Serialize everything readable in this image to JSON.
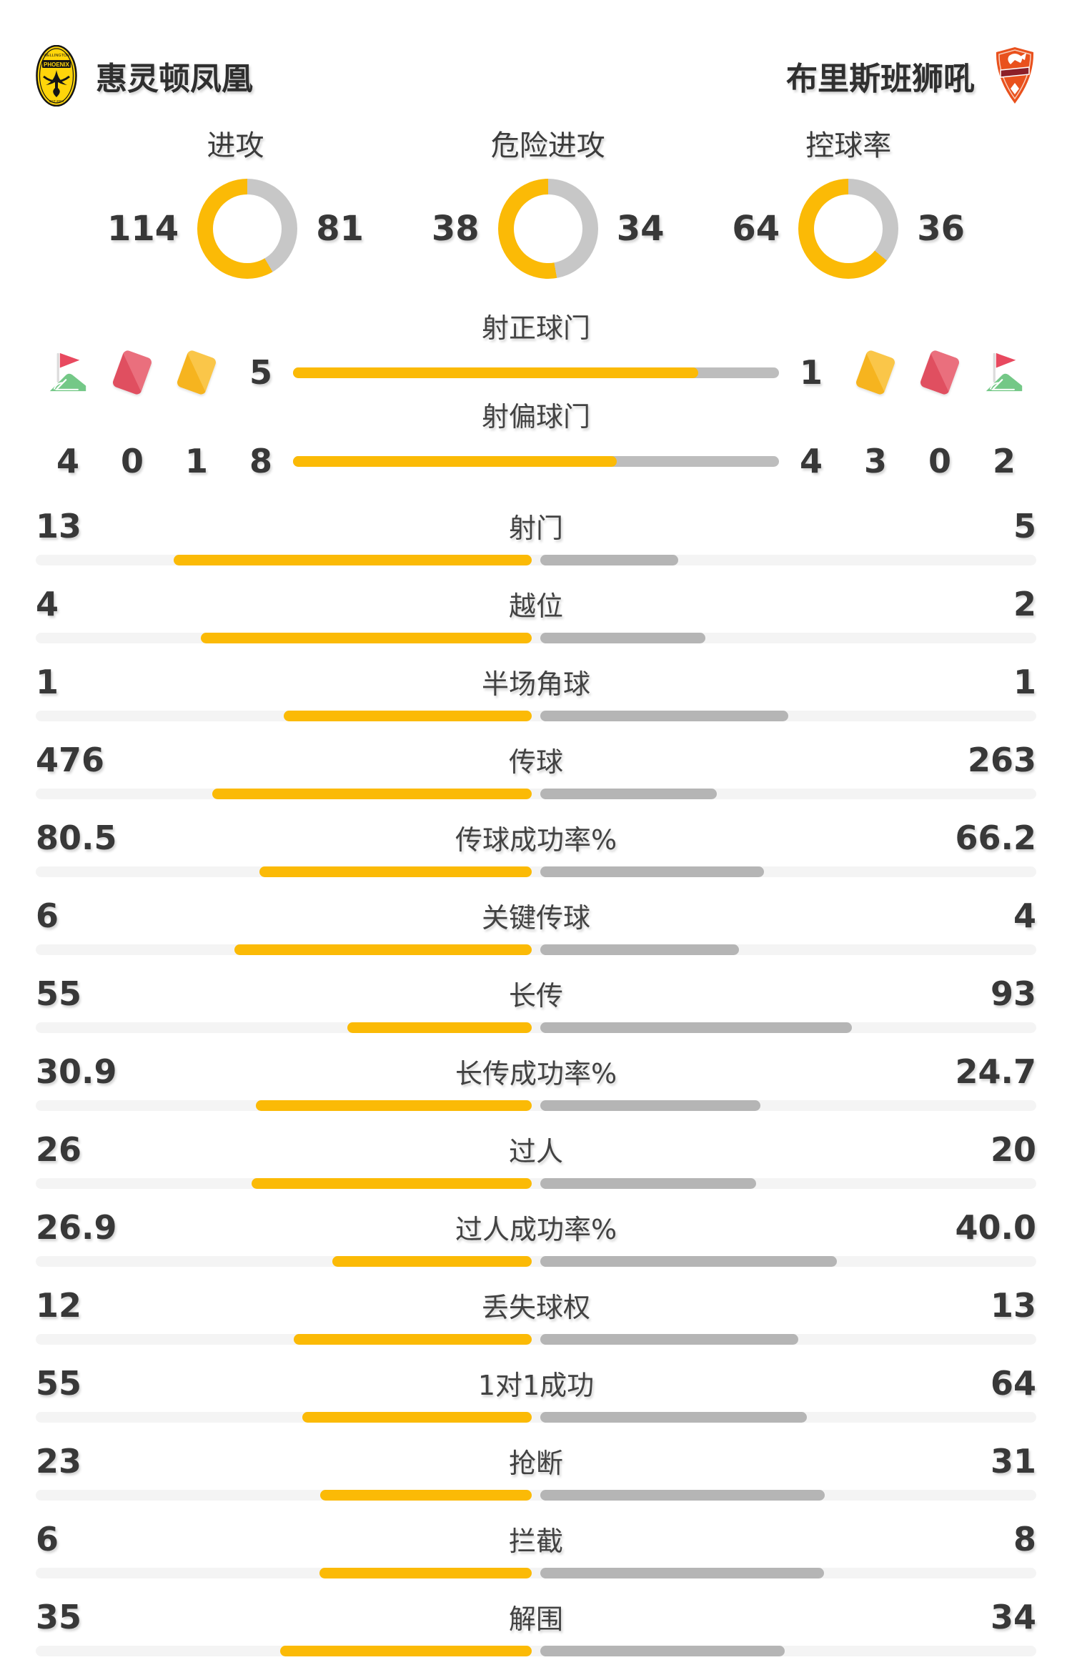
{
  "teams": {
    "home": {
      "name": "惠灵顿凤凰"
    },
    "away": {
      "name": "布里斯班狮吼"
    }
  },
  "circles": [
    {
      "label": "进攻",
      "home": "114",
      "away": "81"
    },
    {
      "label": "危险进攻",
      "home": "38",
      "away": "34"
    },
    {
      "label": "控球率",
      "home": "64",
      "away": "36"
    }
  ],
  "discipline": {
    "home": [
      {
        "type": "corner-flag",
        "count": "4"
      },
      {
        "type": "red-card",
        "count": "0"
      },
      {
        "type": "yellow-card",
        "count": "1"
      }
    ],
    "away": [
      {
        "type": "yellow-card",
        "count": "3"
      },
      {
        "type": "red-card",
        "count": "0"
      },
      {
        "type": "corner-flag",
        "count": "2"
      }
    ]
  },
  "shot_bars": [
    {
      "label": "射正球门",
      "home": "5",
      "away": "1"
    },
    {
      "label": "射偏球门",
      "home": "8",
      "away": "4"
    }
  ],
  "stats": [
    {
      "label": "射门",
      "home": "13",
      "away": "5"
    },
    {
      "label": "越位",
      "home": "4",
      "away": "2"
    },
    {
      "label": "半场角球",
      "home": "1",
      "away": "1"
    },
    {
      "label": "传球",
      "home": "476",
      "away": "263"
    },
    {
      "label": "传球成功率%",
      "home": "80.5",
      "away": "66.2"
    },
    {
      "label": "关键传球",
      "home": "6",
      "away": "4"
    },
    {
      "label": "长传",
      "home": "55",
      "away": "93"
    },
    {
      "label": "长传成功率%",
      "home": "30.9",
      "away": "24.7"
    },
    {
      "label": "过人",
      "home": "26",
      "away": "20"
    },
    {
      "label": "过人成功率%",
      "home": "26.9",
      "away": "40.0"
    },
    {
      "label": "丢失球权",
      "home": "12",
      "away": "13"
    },
    {
      "label": "1对1成功",
      "home": "55",
      "away": "64"
    },
    {
      "label": "抢断",
      "home": "23",
      "away": "31"
    },
    {
      "label": "拦截",
      "home": "6",
      "away": "8"
    },
    {
      "label": "解围",
      "home": "35",
      "away": "34"
    }
  ],
  "colors": {
    "home_accent_yellow": "#FBBA06",
    "away_bar_gray": "#B5B5B5",
    "donut_gray": "#C7C7C7",
    "shot_bar_track_gray": "#BDBDBD",
    "stat_track_gray": "#F4F4F4",
    "text_dark": "#383838",
    "yellow_card": "#F6B41F",
    "red_card": "#E04F60",
    "corner_flag_red": "#E8495F",
    "corner_flag_green": "#74C887",
    "home_logo_yellow": "#FFD50A",
    "away_logo_orange": "#E9511D"
  }
}
